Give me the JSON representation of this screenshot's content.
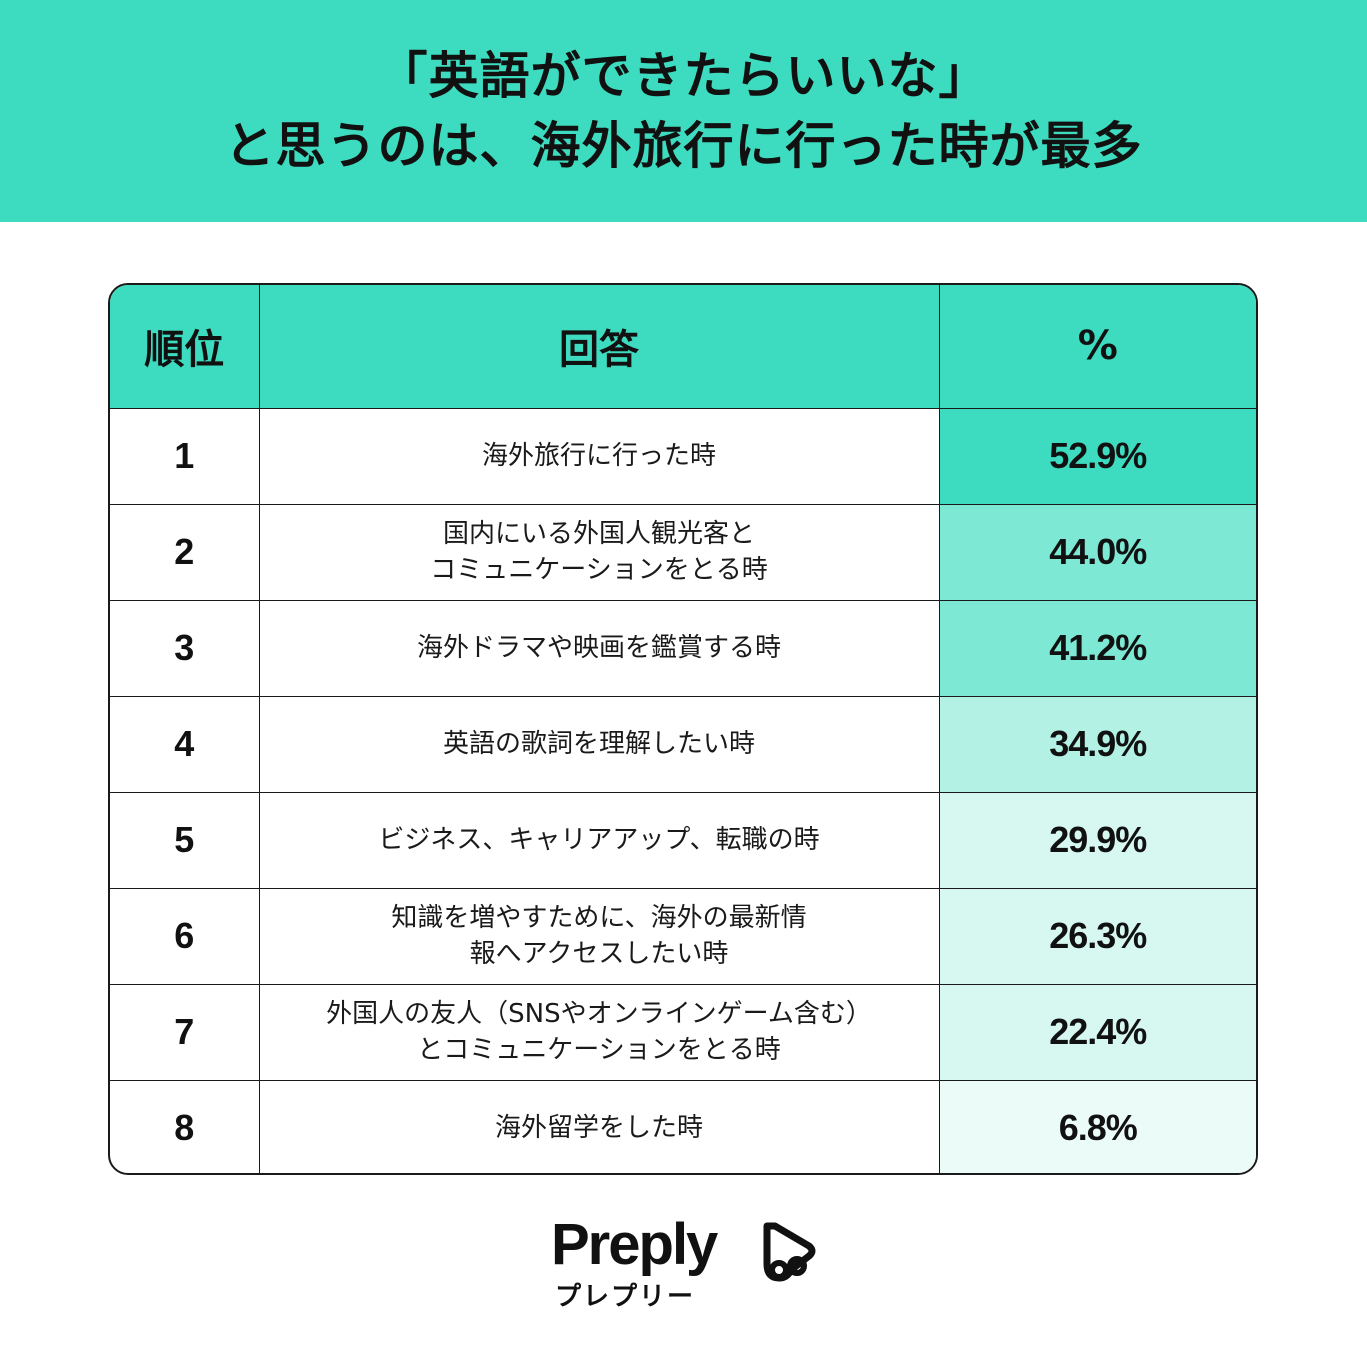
{
  "title": {
    "line1": "「英語ができたらいいな」",
    "line2": "と思うのは、海外旅行に行った時が最多"
  },
  "table": {
    "headers": {
      "rank": "順位",
      "answer": "回答",
      "percent": "%"
    }
  },
  "chart_data": {
    "type": "table",
    "columns": [
      "順位",
      "回答",
      "%"
    ],
    "rows": [
      {
        "rank": "1",
        "answer": "海外旅行に行った時",
        "value": 52.9,
        "label": "52.9%"
      },
      {
        "rank": "2",
        "answer": "国内にいる外国人観光客と\nコミュニケーションをとる時",
        "value": 44.0,
        "label": "44.0%"
      },
      {
        "rank": "3",
        "answer": "海外ドラマや映画を鑑賞する時",
        "value": 41.2,
        "label": "41.2%"
      },
      {
        "rank": "4",
        "answer": "英語の歌詞を理解したい時",
        "value": 34.9,
        "label": "34.9%"
      },
      {
        "rank": "5",
        "answer": "ビジネス、キャリアアップ、転職の時",
        "value": 29.9,
        "label": "29.9%"
      },
      {
        "rank": "6",
        "answer": "知識を増やすために、海外の最新情\n報へアクセスしたい時",
        "value": 26.3,
        "label": "26.3%"
      },
      {
        "rank": "7",
        "answer": "外国人の友人（SNSやオンラインゲーム含む）\nとコミュニケーションをとる時",
        "value": 22.4,
        "label": "22.4%"
      },
      {
        "rank": "8",
        "answer": "海外留学をした時",
        "value": 6.8,
        "label": "6.8%"
      }
    ]
  },
  "colors": {
    "accent": "#3ddbbf",
    "scale": [
      "#3ddbbf",
      "#7de8d4",
      "#7de8d4",
      "#b2f1e4",
      "#d6f8f1",
      "#d6f8f1",
      "#d6f8f1",
      "#ebfcf8"
    ]
  },
  "logo": {
    "wordmark": "Preply",
    "subtitle": "プレプリー",
    "icon": "preply-play-heart-icon"
  }
}
